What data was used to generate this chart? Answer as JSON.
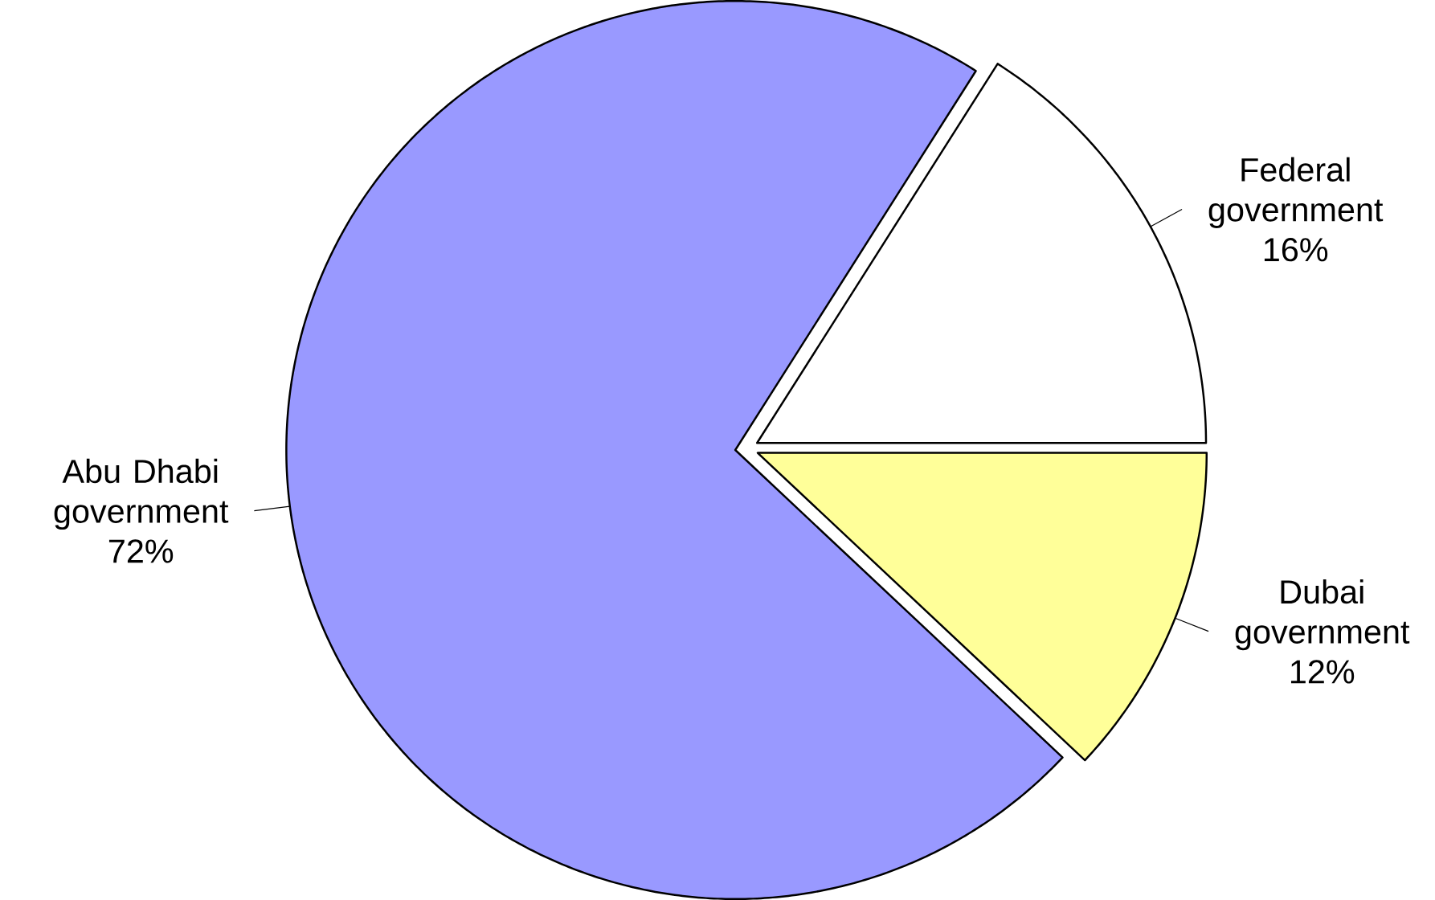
{
  "chart_data": {
    "type": "pie",
    "categories": [
      "Federal government",
      "Dubai government",
      "Abu Dhabi government"
    ],
    "values": [
      16,
      12,
      72
    ],
    "value_labels": [
      "16%",
      "12%",
      "72%"
    ],
    "colors": [
      "#ffffff",
      "#ffff99",
      "#9999ff"
    ]
  }
}
